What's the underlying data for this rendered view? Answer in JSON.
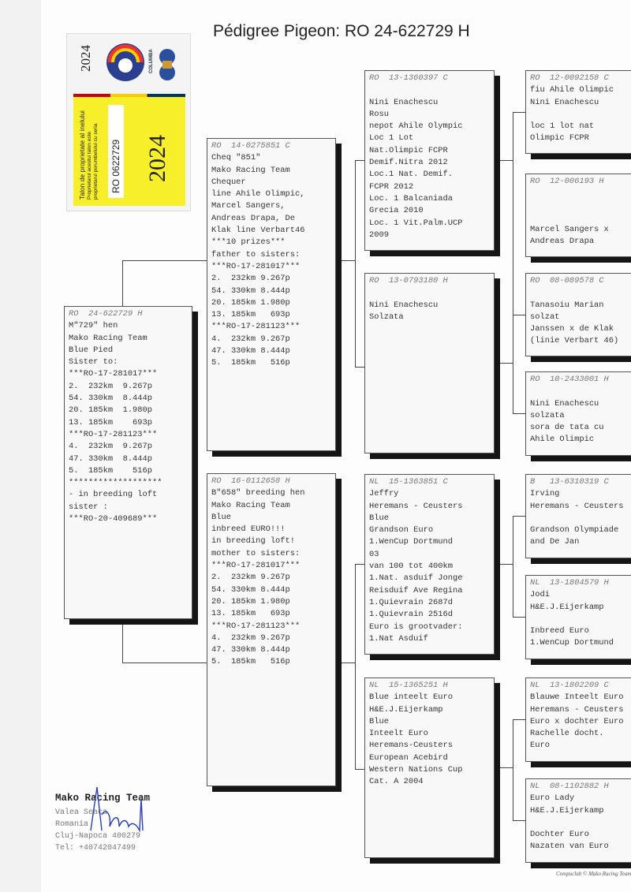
{
  "title": "Pédigree Pigeon: RO  24-622729 H",
  "ring_label": {
    "year": "2024",
    "brand": "COLUMBA",
    "text1": "Talon de proprietate al inelului",
    "text2": "Proprietarul acestui talon este",
    "text3": "proprietarul porumbelului cu seria",
    "ring_number": "RO  0622729",
    "year_big": "2024",
    "colors": {
      "label": "#f7ef2a"
    }
  },
  "boxes": [
    {
      "id": "subject",
      "header": "RO  24-622729 H",
      "lines": [
        "M\"729\" hen",
        "Mako Racing Team",
        "Blue Pied",
        "Sister to:",
        "***RO-17-281017***",
        "2.  232km  9.267p",
        "54. 330km  8.444p",
        "20. 185km  1.980p",
        "13. 185km    693p",
        "***RO-17-281123***",
        "4.  232km  9.267p",
        "47. 330km  8.444p",
        "5.  185km    516p",
        "*******************",
        "- in breeding loft",
        "sister :",
        "***RO-20-409689***"
      ]
    },
    {
      "id": "sire",
      "header": "RO  14-0275851 C",
      "lines": [
        "Cheq \"851\"",
        "Mako Racing Team",
        "Chequer",
        "line Ahile Olimpic,",
        "Marcel Sangers,",
        "Andreas Drapa, De",
        "Klak line Verbart46",
        "***10 prizes***",
        "father to sisters:",
        "***RO-17-281017***",
        "2.  232km 9.267p",
        "54. 330km 8.444p",
        "20. 185km 1.980p",
        "13. 185km   693p",
        "***RO-17-281123***",
        "4.  232km 9.267p",
        "47. 330km 8.444p",
        "5.  185km   516p"
      ]
    },
    {
      "id": "dam",
      "header": "RO  16-0112658 H",
      "lines": [
        "B\"658\" breeding hen",
        "Mako Racing Team",
        "Blue",
        "inbreed EURO!!!",
        "in breeding loft!",
        "mother to sisters:",
        "***RO-17-281017***",
        "2.  232km 9.267p",
        "54. 330km 8.444p",
        "20. 185km 1.980p",
        "13. 185km   693p",
        "***RO-17-281123***",
        "4.  232km 9.267p",
        "47. 330km 8.444p",
        "5.  185km   516p"
      ]
    },
    {
      "id": "ss",
      "header": "RO  13-1360397 C",
      "lines": [
        "",
        "Nini Enachescu",
        "Rosu",
        "nepot Ahile Olympic",
        "Loc 1 Lot",
        "Nat.Olimpic FCPR",
        "Demif.Nitra 2012",
        "Loc.1 Nat. Demif.",
        "FCPR 2012",
        "Loc. 1 Balcaniada",
        "Grecia 2010",
        "Loc. 1 Vit.Palm.UCP",
        "2009"
      ]
    },
    {
      "id": "sd",
      "header": "RO  13-0793180 H",
      "lines": [
        "",
        "Nini Enachescu",
        "Solzata"
      ]
    },
    {
      "id": "ds",
      "header": "NL  15-1363851 C",
      "lines": [
        "Jeffry",
        "Heremans - Ceusters",
        "Blue",
        "Grandson Euro",
        "1.WenCup Dortmund",
        "03",
        "van 100 tot 400km",
        "1.Nat. asduif Jonge",
        "Reisduif Ave Regina",
        "1.Quievrain 2687d",
        "1.Quievrain 2516d",
        "Euro is grootvader:",
        "1.Nat Asduif"
      ]
    },
    {
      "id": "dd",
      "header": "NL  15-1365251 H",
      "lines": [
        "Blue inteelt Euro",
        "H&E.J.Eijerkamp",
        "Blue",
        "Inteelt Euro",
        "Heremans-Ceusters",
        "European Acebird",
        "Western Nations Cup",
        "Cat. A 2004"
      ]
    },
    {
      "id": "sss",
      "header": "RO  12-0092158 C",
      "lines": [
        "fiu Ahile Olimpic",
        "Nini Enachescu",
        "",
        "loc 1 lot nat",
        "Olimpic FCPR"
      ]
    },
    {
      "id": "ssd",
      "header": "RO  12-006193 H",
      "lines": [
        "",
        "",
        "",
        "Marcel Sangers x",
        "Andreas Drapa"
      ]
    },
    {
      "id": "sds",
      "header": "RO  08-089578 C",
      "lines": [
        "",
        "Tanasoiu Marian",
        "solzat",
        "Janssen x de Klak",
        "(linie Verbart 46)"
      ]
    },
    {
      "id": "sdd",
      "header": "RO  10-2433001 H",
      "lines": [
        "",
        "Nini Enachescu",
        "solzata",
        "sora de tata cu",
        "Ahile Olimpic"
      ]
    },
    {
      "id": "dss",
      "header": "B   13-6310319 C",
      "lines": [
        "Irving",
        "Heremans - Ceusters",
        "",
        "Grandson Olympiade",
        "and De Jan"
      ]
    },
    {
      "id": "dsd",
      "header": "NL  13-1804579 H",
      "lines": [
        "Jodi",
        "H&E.J.Eijerkamp",
        "",
        "Inbreed Euro",
        "1.WenCup Dortmund"
      ]
    },
    {
      "id": "dds",
      "header": "NL  13-1802209 C",
      "lines": [
        "Blauwe Inteelt Euro",
        "Heremans - Ceusters",
        "Euro x dochter Euro",
        "Rachelle docht.",
        "Euro"
      ]
    },
    {
      "id": "ddd",
      "header": "NL  08-1102882 H",
      "lines": [
        "Euro Lady",
        "H&E.J.Eijerkamp",
        "",
        "Dochter Euro",
        "Nazaten van Euro"
      ]
    }
  ],
  "footer": {
    "name": "Mako Racing Team",
    "lines": [
      "Valea Seaca",
      "Romania",
      "Cluj-Napoca 400279",
      "Tel: +40742047499"
    ],
    "copyright": "Compuclub © Mako Racing Team"
  }
}
